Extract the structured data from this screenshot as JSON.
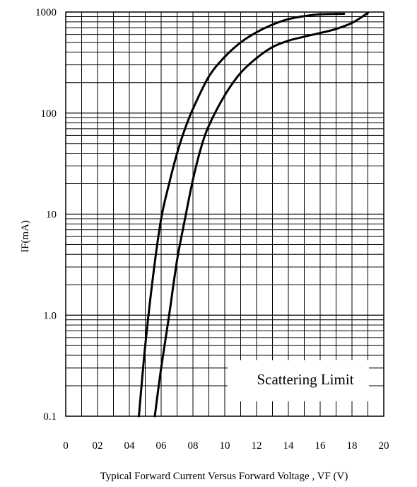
{
  "chart_data": {
    "type": "line",
    "title": "",
    "xlabel": "Typical Forward Current Versus Forward Voltage , VF (V)",
    "ylabel": "IF(mA)",
    "x_scale": "linear",
    "y_scale": "log",
    "xlim": [
      0,
      2.0
    ],
    "ylim": [
      0.1,
      1000
    ],
    "x_ticks": [
      0,
      0.2,
      0.4,
      0.6,
      0.8,
      1.0,
      1.2,
      1.4,
      1.6,
      1.8,
      2.0
    ],
    "x_tick_labels": [
      "0",
      "02",
      "04",
      "06",
      "08",
      "10",
      "12",
      "14",
      "16",
      "18",
      "20"
    ],
    "y_ticks": [
      0.1,
      1.0,
      10,
      100,
      1000
    ],
    "y_tick_labels": [
      "0.1",
      "1.0",
      "10",
      "100",
      "1000"
    ],
    "grid": true,
    "legend_text": "Scattering Limit",
    "legend_position": "bottom-right",
    "series": [
      {
        "x": [
          0.46,
          0.5,
          0.55,
          0.6,
          0.65,
          0.7,
          0.75,
          0.8,
          0.9,
          1.0,
          1.1,
          1.2,
          1.3,
          1.4,
          1.5,
          1.6,
          1.75
        ],
        "y": [
          0.1,
          0.5,
          2.5,
          9,
          20,
          40,
          70,
          110,
          230,
          360,
          500,
          630,
          750,
          850,
          910,
          950,
          960
        ]
      },
      {
        "x": [
          0.56,
          0.6,
          0.65,
          0.7,
          0.75,
          0.8,
          0.85,
          0.9,
          1.0,
          1.1,
          1.2,
          1.3,
          1.4,
          1.5,
          1.6,
          1.7,
          1.8,
          1.9
        ],
        "y": [
          0.1,
          0.3,
          1.0,
          3.5,
          9,
          22,
          45,
          75,
          150,
          250,
          350,
          450,
          520,
          570,
          620,
          680,
          780,
          980
        ]
      }
    ]
  }
}
